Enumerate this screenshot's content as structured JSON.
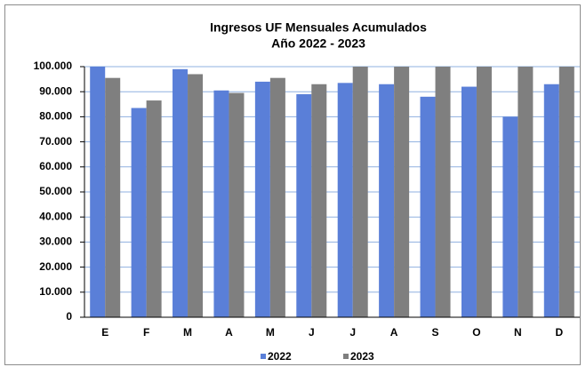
{
  "chart_data": {
    "type": "bar",
    "title": "Ingresos UF Mensuales Acumulados",
    "subtitle": "Año 2022 - 2023",
    "categories": [
      "E",
      "F",
      "M",
      "A",
      "M",
      "J",
      "J",
      "A",
      "S",
      "O",
      "N",
      "D"
    ],
    "series": [
      {
        "name": "2022",
        "color": "#5a7fd8",
        "values": [
          100000,
          83500,
          99000,
          90500,
          94000,
          89000,
          93500,
          93000,
          88000,
          92000,
          80000,
          93000
        ]
      },
      {
        "name": "2023",
        "color": "#7f7f7f",
        "values": [
          95500,
          86500,
          97000,
          89500,
          95500,
          93000,
          100000,
          100000,
          100000,
          100000,
          100000,
          100000
        ]
      }
    ],
    "ylim": [
      0,
      100000
    ],
    "yticks": [
      0,
      {
        "value": 10000,
        "label": "10.000"
      },
      {
        "value": 20000,
        "label": "20.000"
      },
      {
        "value": 30000,
        "label": "30.000"
      },
      {
        "value": 40000,
        "label": "40.000"
      },
      {
        "value": 50000,
        "label": "50.000"
      },
      {
        "value": 60000,
        "label": "60.000"
      },
      {
        "value": 70000,
        "label": "70.000"
      },
      {
        "value": 80000,
        "label": "80.000"
      },
      {
        "value": 90000,
        "label": "90.000"
      },
      {
        "value": 100000,
        "label": "100.000"
      }
    ],
    "grid": true,
    "legend": "bottom"
  }
}
